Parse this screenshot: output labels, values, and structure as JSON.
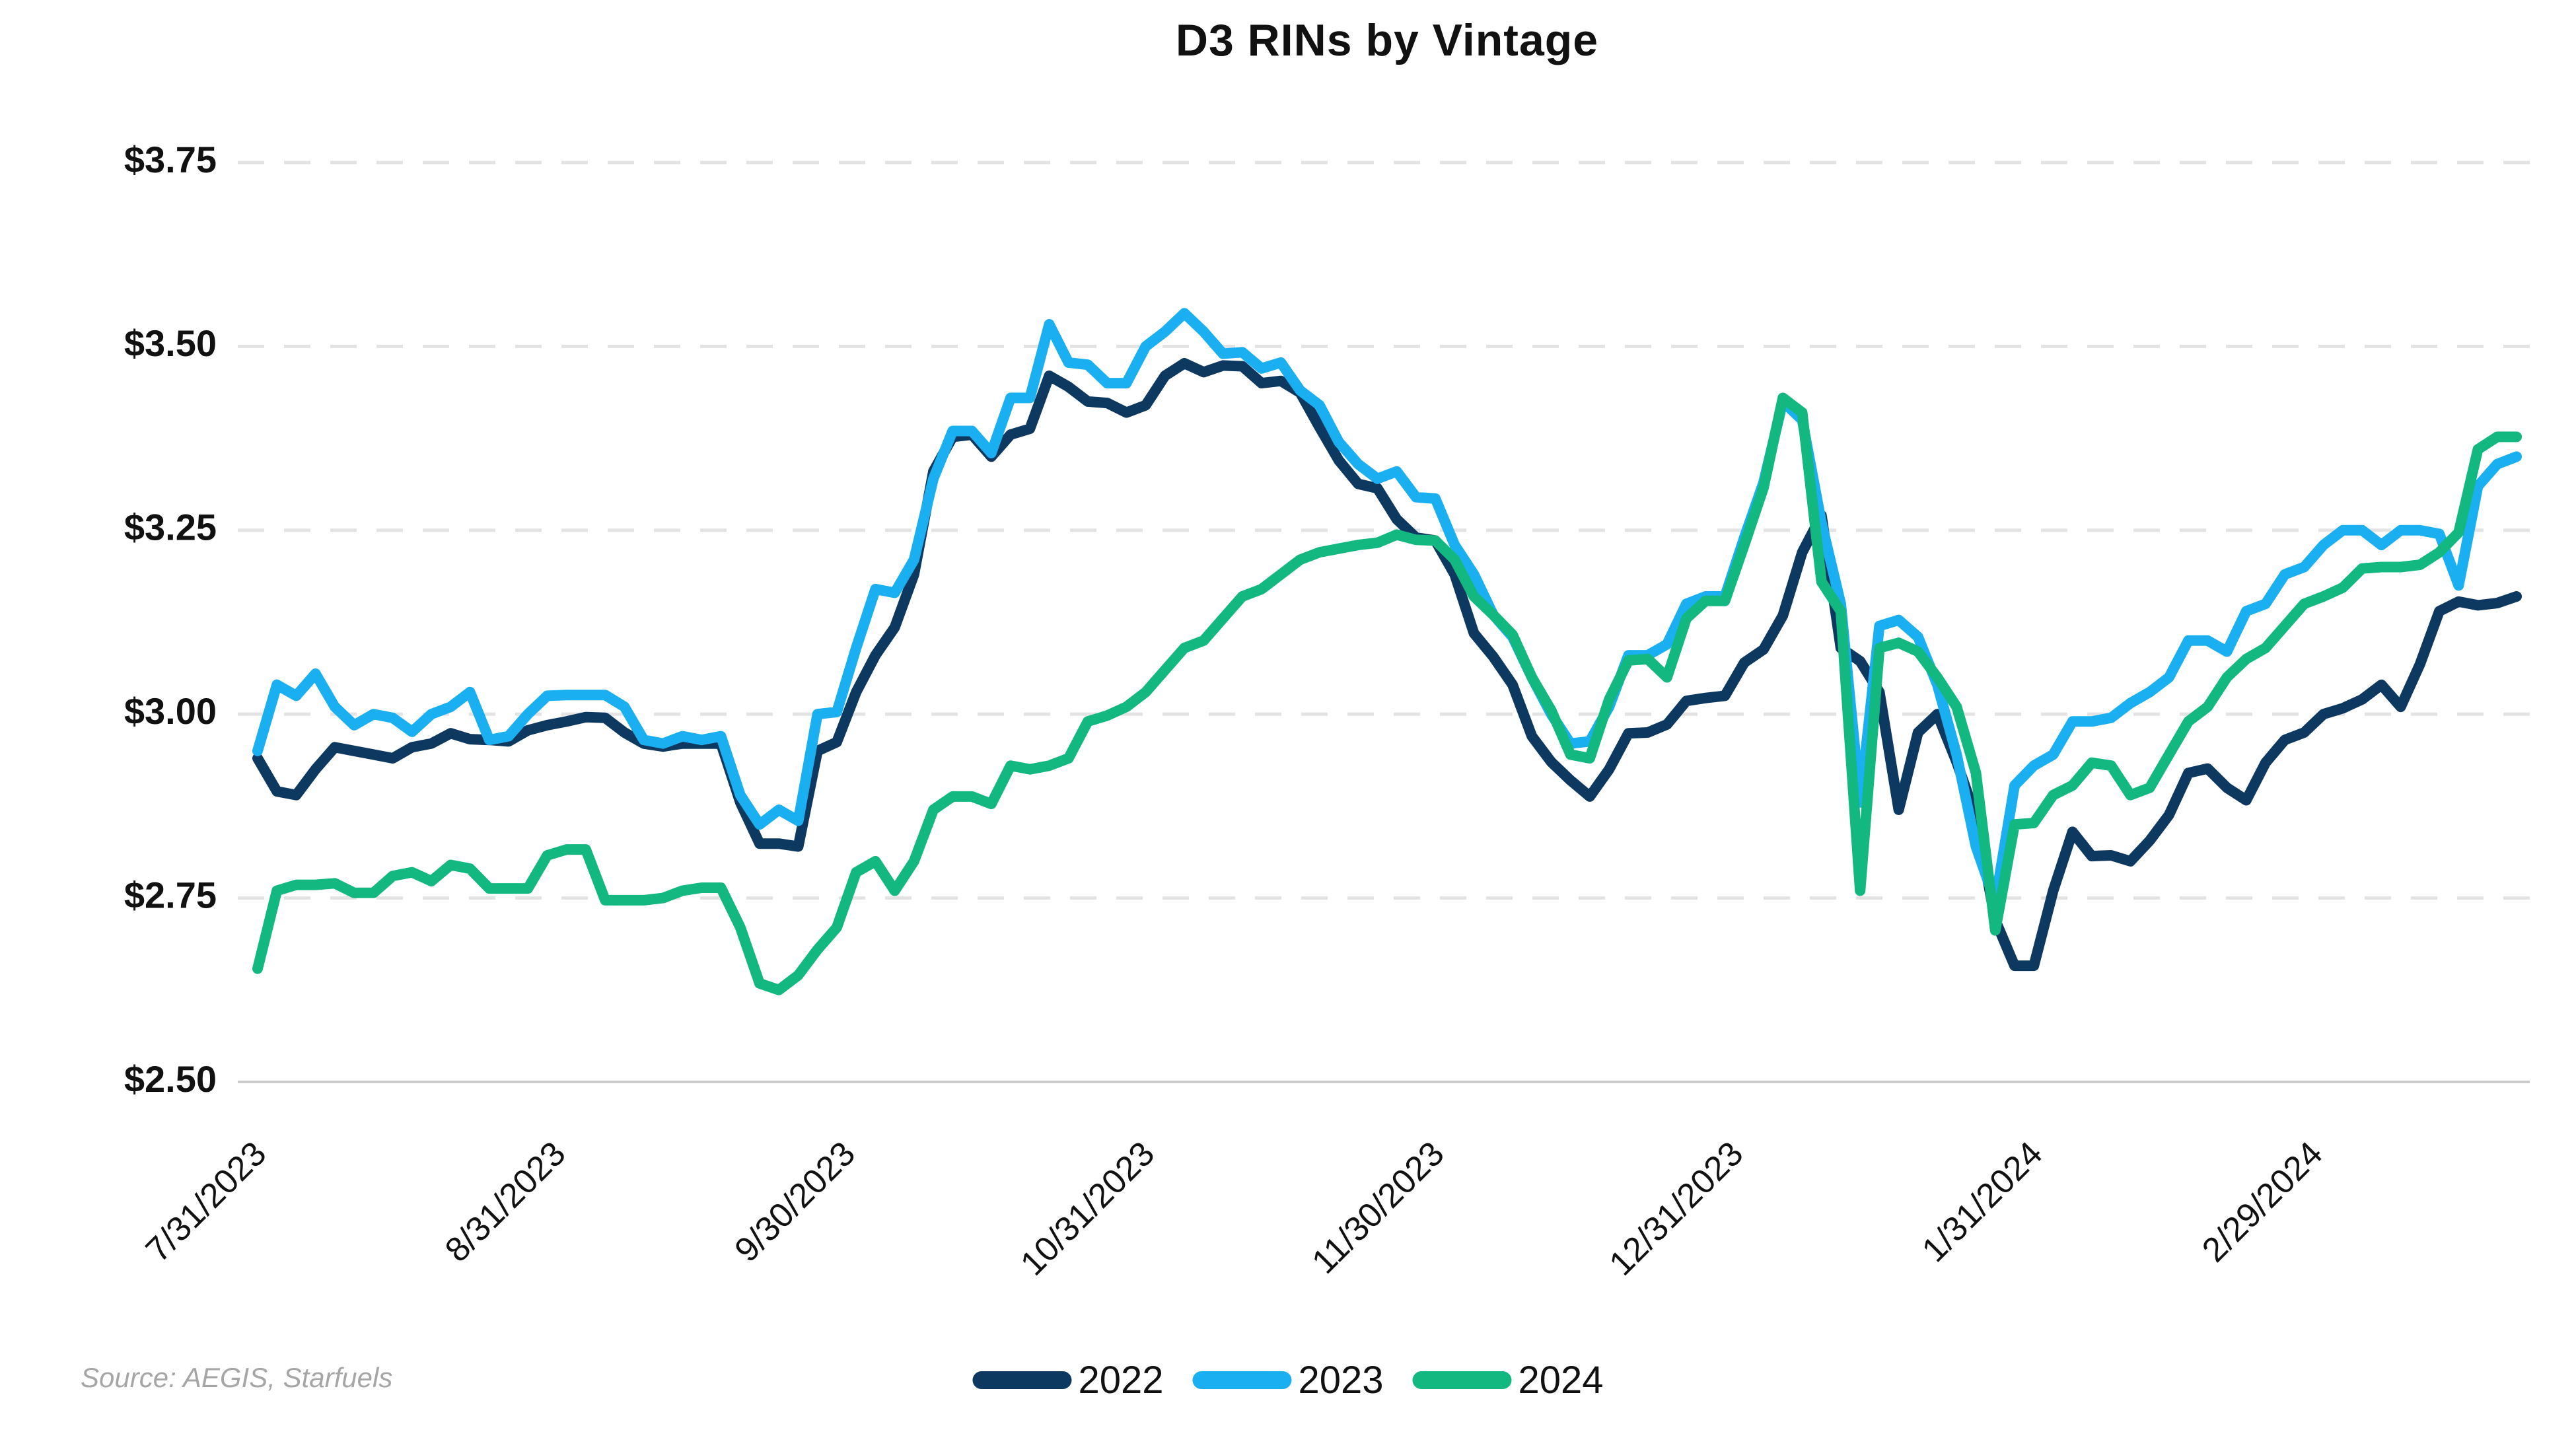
{
  "title": "D3 RINs by Vintage",
  "source": "Source: AEGIS, Starfuels",
  "legend": {
    "items": [
      {
        "label": "2022",
        "color": "#0d3860"
      },
      {
        "label": "2023",
        "color": "#1aaff0"
      },
      {
        "label": "2024",
        "color": "#12b87f"
      }
    ]
  },
  "colors": {
    "grid": "#e3e3e3",
    "axis": "#cccccc",
    "text": "#111111",
    "source_text": "#a6a6a6"
  },
  "chart_data": {
    "type": "line",
    "title": "D3 RINs by Vintage",
    "xlabel": "",
    "ylabel": "",
    "ylim": [
      2.5,
      3.75
    ],
    "grid": "horizontal-dashed",
    "legend_position": "bottom-center",
    "y_ticks": [
      {
        "label": "$2.50",
        "value": 2.5
      },
      {
        "label": "$2.75",
        "value": 2.75
      },
      {
        "label": "$3.00",
        "value": 3.0
      },
      {
        "label": "$3.25",
        "value": 3.25
      },
      {
        "label": "$3.50",
        "value": 3.5
      },
      {
        "label": "$3.75",
        "value": 3.75
      }
    ],
    "x_ticks": [
      {
        "label": "7/31/2023",
        "pos": 0.0
      },
      {
        "label": "8/31/2023",
        "pos": 0.1325
      },
      {
        "label": "9/30/2023",
        "pos": 0.2607
      },
      {
        "label": "10/31/2023",
        "pos": 0.3932
      },
      {
        "label": "11/30/2023",
        "pos": 0.5214
      },
      {
        "label": "12/31/2023",
        "pos": 0.6538
      },
      {
        "label": "1/31/2024",
        "pos": 0.7863
      },
      {
        "label": "2/29/2024",
        "pos": 0.9103
      }
    ],
    "series": [
      {
        "name": "2022",
        "color": "#0d3860",
        "values": [
          2.94,
          2.895,
          2.89,
          2.925,
          2.955,
          2.95,
          2.945,
          2.94,
          2.955,
          2.96,
          2.974,
          2.966,
          2.965,
          2.963,
          2.978,
          2.985,
          2.99,
          2.996,
          2.995,
          2.975,
          2.96,
          2.956,
          2.96,
          2.96,
          2.96,
          2.88,
          2.824,
          2.824,
          2.82,
          2.95,
          2.962,
          3.03,
          3.08,
          3.118,
          3.19,
          3.33,
          3.377,
          3.38,
          3.35,
          3.38,
          3.388,
          3.46,
          3.445,
          3.425,
          3.423,
          3.41,
          3.42,
          3.46,
          3.477,
          3.465,
          3.474,
          3.473,
          3.45,
          3.453,
          3.437,
          3.39,
          3.345,
          3.313,
          3.307,
          3.265,
          3.24,
          3.236,
          3.19,
          3.11,
          3.078,
          3.04,
          2.97,
          2.935,
          2.91,
          2.888,
          2.925,
          2.974,
          2.975,
          2.986,
          3.018,
          3.022,
          3.025,
          3.07,
          3.088,
          3.134,
          3.22,
          3.27,
          3.09,
          3.072,
          3.03,
          2.87,
          2.975,
          3.0,
          2.935,
          2.86,
          2.72,
          2.658,
          2.658,
          2.76,
          2.84,
          2.807,
          2.808,
          2.8,
          2.828,
          2.863,
          2.92,
          2.926,
          2.9,
          2.883,
          2.934,
          2.965,
          2.975,
          3.0,
          3.008,
          3.02,
          3.04,
          3.01,
          3.068,
          3.14,
          3.153,
          3.148,
          3.151,
          3.16
        ]
      },
      {
        "name": "2023",
        "color": "#1aaff0",
        "values": [
          2.95,
          3.04,
          3.025,
          3.055,
          3.01,
          2.985,
          3.0,
          2.995,
          2.976,
          3.0,
          3.01,
          3.03,
          2.965,
          2.97,
          3.0,
          3.025,
          3.026,
          3.026,
          3.026,
          3.01,
          2.965,
          2.96,
          2.97,
          2.965,
          2.97,
          2.89,
          2.85,
          2.87,
          2.855,
          3.0,
          3.003,
          3.09,
          3.17,
          3.165,
          3.21,
          3.32,
          3.385,
          3.385,
          3.355,
          3.43,
          3.43,
          3.53,
          3.478,
          3.475,
          3.45,
          3.45,
          3.5,
          3.52,
          3.545,
          3.52,
          3.49,
          3.492,
          3.47,
          3.478,
          3.44,
          3.42,
          3.37,
          3.34,
          3.32,
          3.33,
          3.295,
          3.293,
          3.23,
          3.19,
          3.135,
          3.105,
          3.05,
          3.0,
          2.96,
          2.963,
          3.01,
          3.08,
          3.08,
          3.095,
          3.15,
          3.16,
          3.16,
          3.24,
          3.315,
          3.425,
          3.4,
          3.26,
          3.15,
          2.88,
          3.12,
          3.128,
          3.105,
          3.04,
          2.945,
          2.82,
          2.745,
          2.903,
          2.93,
          2.945,
          2.99,
          2.99,
          2.995,
          3.015,
          3.03,
          3.05,
          3.1,
          3.1,
          3.085,
          3.14,
          3.15,
          3.19,
          3.2,
          3.23,
          3.25,
          3.25,
          3.23,
          3.25,
          3.25,
          3.245,
          3.175,
          3.31,
          3.34,
          3.35
        ]
      },
      {
        "name": "2024",
        "color": "#12b87f",
        "values": [
          2.654,
          2.76,
          2.768,
          2.768,
          2.77,
          2.757,
          2.757,
          2.78,
          2.785,
          2.773,
          2.795,
          2.79,
          2.763,
          2.763,
          2.763,
          2.808,
          2.816,
          2.816,
          2.747,
          2.747,
          2.747,
          2.75,
          2.76,
          2.764,
          2.764,
          2.71,
          2.634,
          2.625,
          2.645,
          2.68,
          2.71,
          2.785,
          2.8,
          2.76,
          2.8,
          2.87,
          2.888,
          2.888,
          2.878,
          2.93,
          2.925,
          2.93,
          2.94,
          2.99,
          2.998,
          3.01,
          3.03,
          3.06,
          3.09,
          3.1,
          3.13,
          3.16,
          3.17,
          3.19,
          3.21,
          3.22,
          3.225,
          3.23,
          3.233,
          3.244,
          3.237,
          3.236,
          3.21,
          3.16,
          3.135,
          3.108,
          3.05,
          3.005,
          2.945,
          2.94,
          3.02,
          3.073,
          3.075,
          3.05,
          3.13,
          3.154,
          3.154,
          3.23,
          3.308,
          3.43,
          3.41,
          3.18,
          3.14,
          2.76,
          3.09,
          3.097,
          3.085,
          3.05,
          3.01,
          2.92,
          2.706,
          2.85,
          2.852,
          2.89,
          2.903,
          2.934,
          2.93,
          2.89,
          2.9,
          2.945,
          2.99,
          3.01,
          3.05,
          3.075,
          3.09,
          3.12,
          3.15,
          3.16,
          3.172,
          3.198,
          3.2,
          3.2,
          3.203,
          3.22,
          3.247,
          3.36,
          3.377,
          3.377
        ]
      }
    ]
  }
}
